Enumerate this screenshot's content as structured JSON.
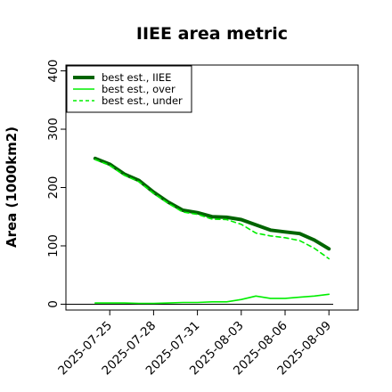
{
  "chart_data": {
    "type": "line",
    "title": "IIEE area metric",
    "xlabel": "",
    "ylabel": "Area (1000km2)",
    "xlim": [
      "2025-07-22",
      "2025-08-11"
    ],
    "ylim": [
      -10,
      410
    ],
    "yticks": [
      0,
      100,
      200,
      300,
      400
    ],
    "xticks": [
      "2025-07-25",
      "2025-07-28",
      "2025-07-31",
      "2025-08-03",
      "2025-08-06",
      "2025-08-09"
    ],
    "x": [
      "2025-07-24",
      "2025-07-25",
      "2025-07-26",
      "2025-07-27",
      "2025-07-28",
      "2025-07-29",
      "2025-07-30",
      "2025-07-31",
      "2025-08-01",
      "2025-08-02",
      "2025-08-03",
      "2025-08-04",
      "2025-08-05",
      "2025-08-06",
      "2025-08-07",
      "2025-08-08",
      "2025-08-09"
    ],
    "series": [
      {
        "name": "best est., IIEE",
        "color": "#006400",
        "style": "solid-thick",
        "values": [
          250,
          240,
          223,
          212,
          192,
          175,
          161,
          157,
          150,
          149,
          145,
          136,
          127,
          124,
          121,
          110,
          95
        ]
      },
      {
        "name": "best est., over",
        "color": "#00ee00",
        "style": "solid",
        "values": [
          2,
          2,
          2,
          1.5,
          1.5,
          2,
          3,
          3,
          4,
          4,
          8,
          14,
          10,
          10,
          12,
          14,
          17
        ]
      },
      {
        "name": "best est., under",
        "color": "#00ee00",
        "style": "dashed",
        "values": [
          248,
          238,
          221,
          210,
          190,
          173,
          158,
          154,
          146,
          145,
          137,
          122,
          117,
          114,
          109,
          96,
          78
        ]
      }
    ],
    "zero_line": true,
    "legend_position": "top-left",
    "grid": false
  }
}
